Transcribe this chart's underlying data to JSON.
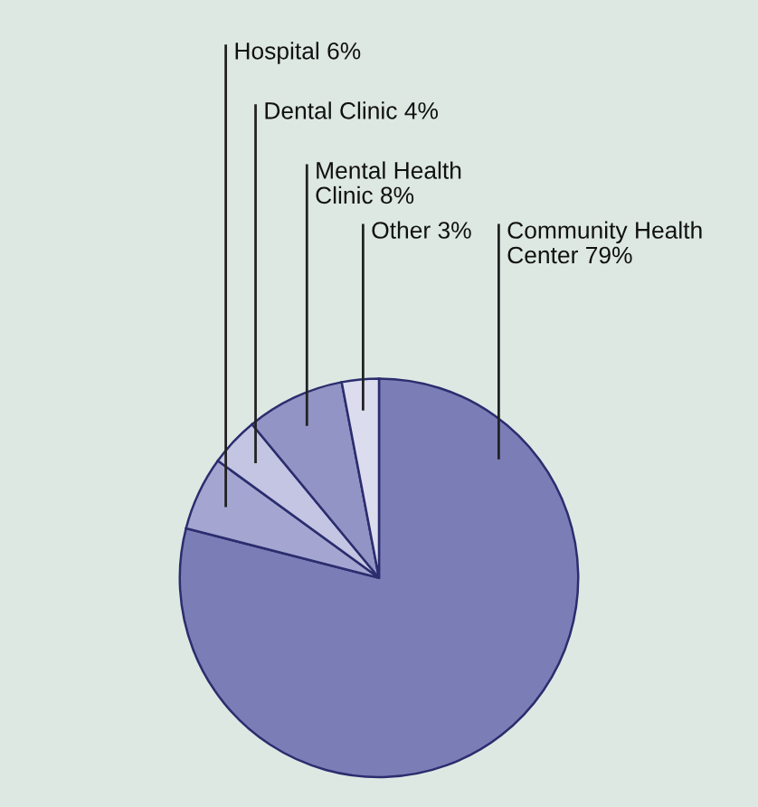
{
  "chart_data": {
    "type": "pie",
    "categories": [
      "Community Health\nCenter",
      "Hospital",
      "Dental Clinic",
      "Mental Health\nClinic",
      "Other"
    ],
    "values": [
      79,
      6,
      4,
      8,
      3
    ],
    "value_labels": [
      "79%",
      "6%",
      "4%",
      "8%",
      "3%"
    ],
    "colors": [
      "#7b7db7",
      "#a4a6d1",
      "#c4c5e3",
      "#9294c5",
      "#dcdcef"
    ]
  }
}
